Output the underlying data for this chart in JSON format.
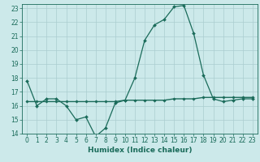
{
  "xlabel": "Humidex (Indice chaleur)",
  "x_values": [
    0,
    1,
    2,
    3,
    4,
    5,
    6,
    7,
    8,
    9,
    10,
    11,
    12,
    13,
    14,
    15,
    16,
    17,
    18,
    19,
    20,
    21,
    22,
    23
  ],
  "line1_y": [
    17.8,
    16.0,
    16.5,
    16.5,
    16.0,
    15.0,
    15.2,
    13.8,
    14.4,
    16.2,
    16.4,
    18.0,
    20.7,
    21.8,
    22.2,
    23.1,
    23.2,
    21.2,
    18.2,
    16.5,
    16.3,
    16.4,
    16.5,
    16.5
  ],
  "line2_y": [
    16.3,
    16.3,
    16.3,
    16.3,
    16.3,
    16.3,
    16.3,
    16.3,
    16.3,
    16.3,
    16.4,
    16.4,
    16.4,
    16.4,
    16.4,
    16.5,
    16.5,
    16.5,
    16.6,
    16.6,
    16.6,
    16.6,
    16.6,
    16.6
  ],
  "ylim": [
    14,
    23
  ],
  "xlim": [
    -0.5,
    23.5
  ],
  "yticks": [
    14,
    15,
    16,
    17,
    18,
    19,
    20,
    21,
    22,
    23
  ],
  "xticks": [
    0,
    1,
    2,
    3,
    4,
    5,
    6,
    7,
    8,
    9,
    10,
    11,
    12,
    13,
    14,
    15,
    16,
    17,
    18,
    19,
    20,
    21,
    22,
    23
  ],
  "line_color": "#1a6b5a",
  "bg_color": "#cce9ea",
  "grid_color": "#aacdd0",
  "tick_label_fontsize": 5.5,
  "xlabel_fontsize": 6.5
}
